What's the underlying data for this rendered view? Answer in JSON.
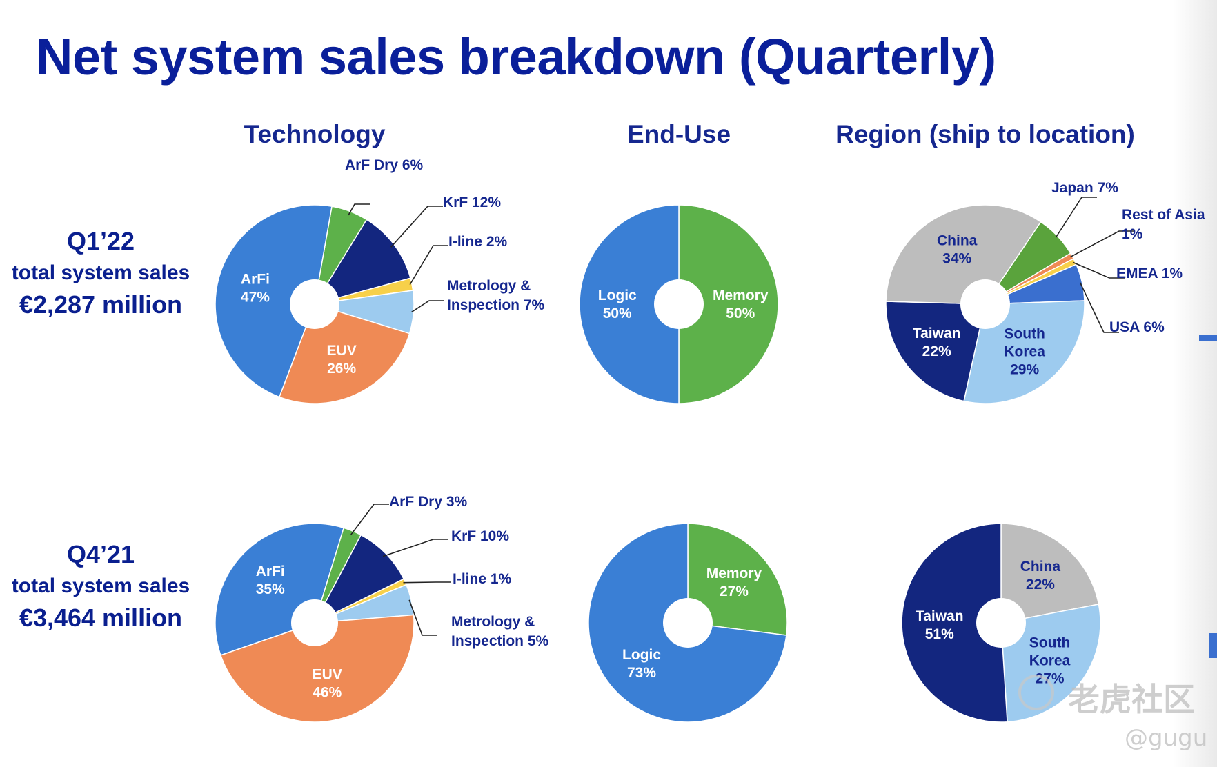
{
  "title": "Net system sales breakdown (Quarterly)",
  "columns": [
    "Technology",
    "End-Use",
    "Region (ship to location)"
  ],
  "rows": [
    {
      "quarter": "Q1’22",
      "caption": "total system sales",
      "amount": "€2,287 million"
    },
    {
      "quarter": "Q4’21",
      "caption": "total system sales",
      "amount": "€3,464 million"
    }
  ],
  "chart_data": [
    {
      "type": "pie",
      "title": "Technology",
      "period": "Q1’22",
      "slices": [
        {
          "name": "ArF Dry",
          "value": 6,
          "label": "ArF Dry 6%",
          "color": "#5db14a",
          "callout": true
        },
        {
          "name": "KrF",
          "value": 12,
          "label": "KrF 12%",
          "color": "#13267f",
          "callout": true
        },
        {
          "name": "I-line",
          "value": 2,
          "label": "I-line 2%",
          "color": "#f7d04a",
          "callout": true
        },
        {
          "name": "Metrology & Inspection",
          "value": 7,
          "label": "Metrology & Inspection 7%",
          "color": "#9dcbef",
          "callout": true
        },
        {
          "name": "EUV",
          "value": 26,
          "label": "EUV 26%",
          "color": "#ef8a55",
          "callout": false
        },
        {
          "name": "ArFi",
          "value": 47,
          "label": "ArFi 47%",
          "color": "#3a7fd5",
          "callout": false
        }
      ]
    },
    {
      "type": "pie",
      "title": "End-Use",
      "period": "Q1’22",
      "slices": [
        {
          "name": "Memory",
          "value": 50,
          "label": "Memory 50%",
          "color": "#5db14a",
          "callout": false
        },
        {
          "name": "Logic",
          "value": 50,
          "label": "Logic 50%",
          "color": "#3a7fd5",
          "callout": false
        }
      ]
    },
    {
      "type": "pie",
      "title": "Region (ship to location)",
      "period": "Q1’22",
      "slices": [
        {
          "name": "Japan",
          "value": 7,
          "label": "Japan 7%",
          "color": "#5aa33c",
          "callout": true
        },
        {
          "name": "Rest of Asia",
          "value": 1,
          "label": "Rest of Asia 1%",
          "color": "#ef8a55",
          "callout": true
        },
        {
          "name": "EMEA",
          "value": 1,
          "label": "EMEA 1%",
          "color": "#f7d04a",
          "callout": true
        },
        {
          "name": "USA",
          "value": 6,
          "label": "USA 6%",
          "color": "#3a6fcf",
          "callout": true
        },
        {
          "name": "South Korea",
          "value": 29,
          "label": "South Korea 29%",
          "color": "#9dcbef",
          "callout": false
        },
        {
          "name": "Taiwan",
          "value": 22,
          "label": "Taiwan 22%",
          "color": "#13267f",
          "callout": false
        },
        {
          "name": "China",
          "value": 34,
          "label": "China 34%",
          "color": "#bdbdbd",
          "callout": false
        }
      ]
    },
    {
      "type": "pie",
      "title": "Technology",
      "period": "Q4’21",
      "slices": [
        {
          "name": "ArF Dry",
          "value": 3,
          "label": "ArF Dry 3%",
          "color": "#5db14a",
          "callout": true
        },
        {
          "name": "KrF",
          "value": 10,
          "label": "KrF 10%",
          "color": "#13267f",
          "callout": true
        },
        {
          "name": "I-line",
          "value": 1,
          "label": "I-line 1%",
          "color": "#f7d04a",
          "callout": true
        },
        {
          "name": "Metrology & Inspection",
          "value": 5,
          "label": "Metrology & Inspection 5%",
          "color": "#9dcbef",
          "callout": true
        },
        {
          "name": "EUV",
          "value": 46,
          "label": "EUV 46%",
          "color": "#ef8a55",
          "callout": false
        },
        {
          "name": "ArFi",
          "value": 35,
          "label": "ArFi 35%",
          "color": "#3a7fd5",
          "callout": false
        }
      ]
    },
    {
      "type": "pie",
      "title": "End-Use",
      "period": "Q4’21",
      "slices": [
        {
          "name": "Memory",
          "value": 27,
          "label": "Memory 27%",
          "color": "#5db14a",
          "callout": false
        },
        {
          "name": "Logic",
          "value": 73,
          "label": "Logic 73%",
          "color": "#3a7fd5",
          "callout": false
        }
      ]
    },
    {
      "type": "pie",
      "title": "Region (ship to location)",
      "period": "Q4’21",
      "slices": [
        {
          "name": "China",
          "value": 22,
          "label": "China 22%",
          "color": "#bdbdbd",
          "callout": false
        },
        {
          "name": "South Korea",
          "value": 27,
          "label": "South Korea 27%",
          "color": "#9dcbef",
          "callout": false
        },
        {
          "name": "Taiwan",
          "value": 51,
          "label": "Taiwan 51%",
          "color": "#13267f",
          "callout": false
        }
      ]
    }
  ],
  "watermark": {
    "brand": "老虎社区",
    "user": "@gugu"
  }
}
